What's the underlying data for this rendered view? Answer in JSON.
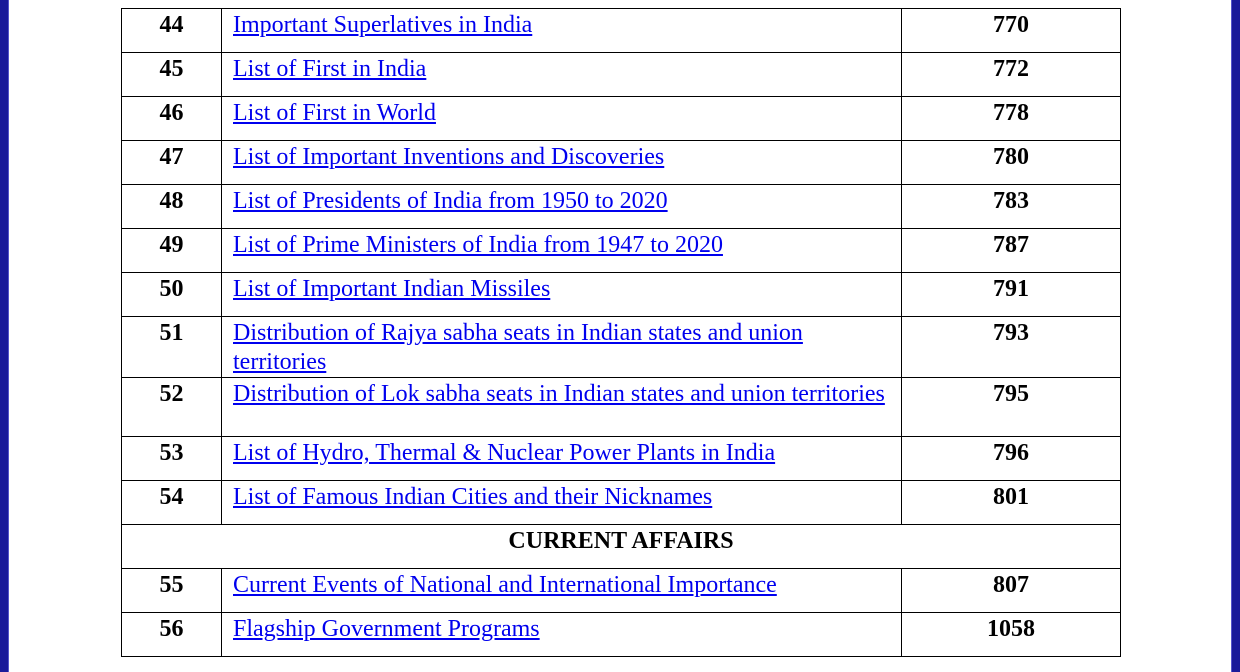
{
  "rows_a": [
    {
      "num": "44",
      "title": "Important Superlatives in India",
      "page": "770"
    },
    {
      "num": "45",
      "title": "List of First in India",
      "page": "772"
    },
    {
      "num": "46",
      "title": "List of First in World",
      "page": "778"
    },
    {
      "num": "47",
      "title": "List of Important Inventions and Discoveries",
      "page": "780"
    },
    {
      "num": "48",
      "title": "List of Presidents of India from 1950 to 2020",
      "page": "783"
    },
    {
      "num": "49",
      "title": "List of Prime Ministers of India from 1947 to 2020",
      "page": "787"
    },
    {
      "num": "50",
      "title": "List of Important Indian Missiles",
      "page": "791"
    },
    {
      "num": "51",
      "title": "Distribution of Rajya sabha seats in Indian states and union territories",
      "page": "793"
    },
    {
      "num": "52",
      "title": "Distribution of Lok sabha seats in Indian states and union territories",
      "page": "795"
    },
    {
      "num": "53",
      "title": "List of Hydro, Thermal & Nuclear Power Plants in India",
      "page": "796"
    },
    {
      "num": "54",
      "title": "List of Famous Indian Cities and their Nicknames",
      "page": "801"
    }
  ],
  "section_heading": "CURRENT AFFAIRS",
  "rows_b": [
    {
      "num": "55",
      "title": "Current Events of National and International Importance",
      "page": "807"
    },
    {
      "num": "56",
      "title": "Flagship Government Programs",
      "page": "1058"
    }
  ],
  "colors": {
    "frame": "#1a1a9a",
    "link": "#0000ee",
    "border": "#000000"
  }
}
